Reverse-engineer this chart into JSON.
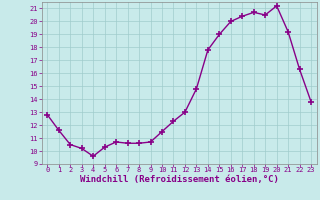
{
  "x": [
    0,
    1,
    2,
    3,
    4,
    5,
    6,
    7,
    8,
    9,
    10,
    11,
    12,
    13,
    14,
    15,
    16,
    17,
    18,
    19,
    20,
    21,
    22,
    23
  ],
  "y": [
    12.8,
    11.6,
    10.5,
    10.2,
    9.6,
    10.3,
    10.7,
    10.6,
    10.6,
    10.7,
    11.5,
    12.3,
    13.0,
    14.8,
    17.8,
    19.0,
    20.0,
    20.4,
    20.7,
    20.5,
    21.2,
    19.2,
    16.3,
    13.8
  ],
  "line_color": "#880088",
  "marker": "+",
  "markersize": 4,
  "markeredgewidth": 1.2,
  "linewidth": 1.0,
  "xlabel": "Windchill (Refroidissement éolien,°C)",
  "xlabel_fontsize": 6.5,
  "bg_color": "#c8eaea",
  "grid_color": "#a0cccc",
  "tick_color": "#880088",
  "label_color": "#880088",
  "xlim": [
    -0.5,
    23.5
  ],
  "ylim": [
    9,
    21.5
  ],
  "yticks": [
    9,
    10,
    11,
    12,
    13,
    14,
    15,
    16,
    17,
    18,
    19,
    20,
    21
  ],
  "xticks": [
    0,
    1,
    2,
    3,
    4,
    5,
    6,
    7,
    8,
    9,
    10,
    11,
    12,
    13,
    14,
    15,
    16,
    17,
    18,
    19,
    20,
    21,
    22,
    23
  ]
}
